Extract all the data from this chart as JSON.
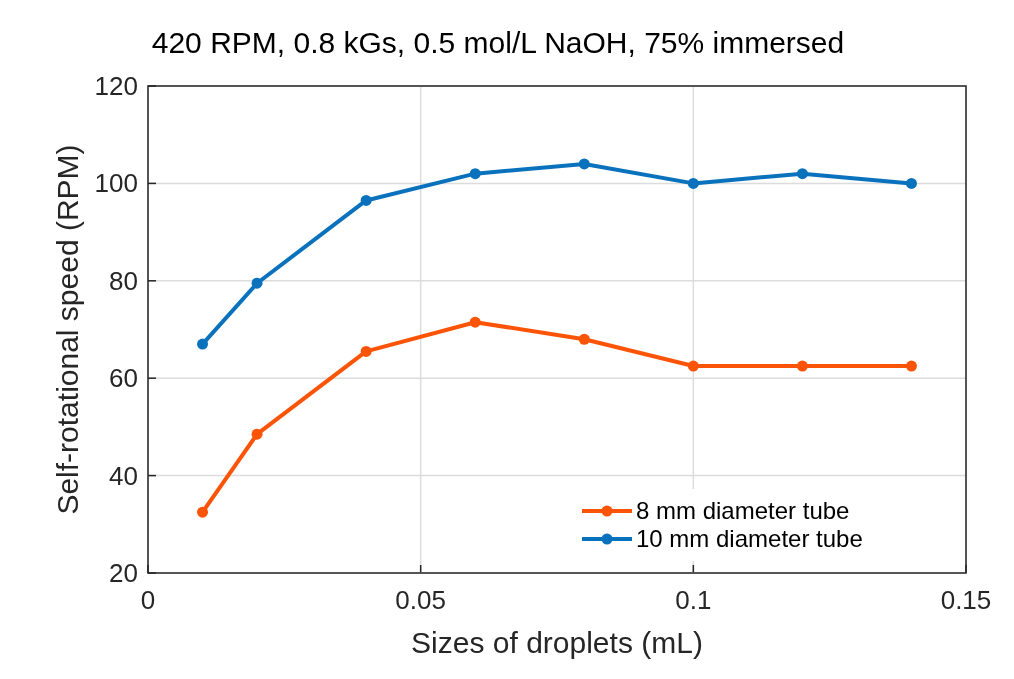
{
  "chart_data": {
    "type": "line",
    "title": "420 RPM, 0.8 kGs, 0.5 mol/L NaOH, 75% immersed",
    "xlabel": "Sizes of droplets (mL)",
    "ylabel": "Self-rotational speed (RPM)",
    "x": [
      0.01,
      0.02,
      0.04,
      0.06,
      0.08,
      0.1,
      0.12,
      0.14
    ],
    "series": [
      {
        "name": "8 mm diameter tube",
        "color": "#fc5406",
        "values": [
          32.5,
          48.5,
          65.5,
          71.5,
          68,
          62.5,
          62.5,
          62.5
        ]
      },
      {
        "name": "10 mm diameter tube",
        "color": "#0a72bd",
        "values": [
          67,
          79.5,
          96.5,
          102,
          104,
          100,
          102,
          100
        ]
      }
    ],
    "xlim": [
      0,
      0.15
    ],
    "xticks": [
      0,
      0.05,
      0.1,
      0.15
    ],
    "ylim": [
      20,
      120
    ],
    "yticks": [
      20,
      40,
      60,
      80,
      100,
      120
    ],
    "grid": true,
    "legend": "bottom right",
    "marker": "circle",
    "line_style": "solid"
  }
}
